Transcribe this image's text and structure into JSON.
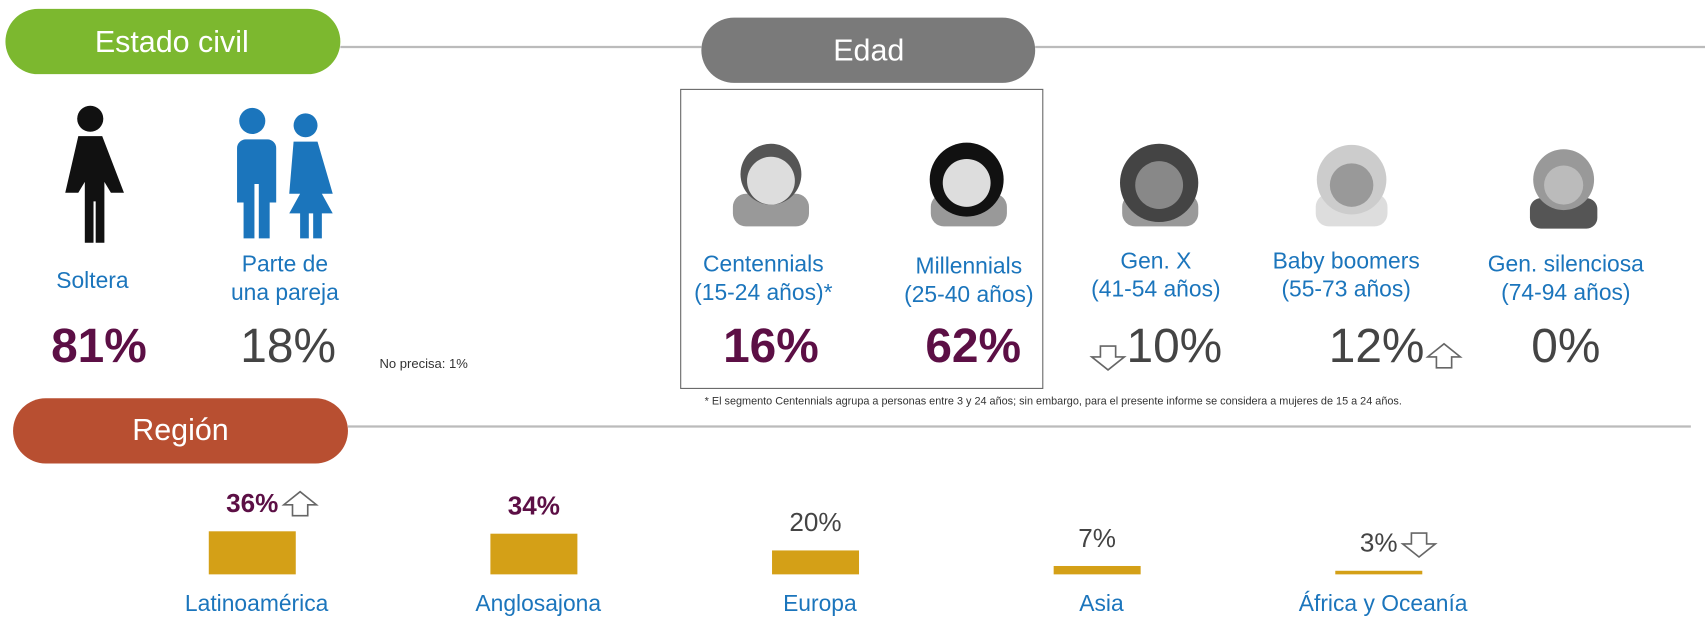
{
  "estado_civil": {
    "title": "Estado civil",
    "items": [
      {
        "lines": [
          "Soltera"
        ],
        "value": "81%",
        "highlight": true
      },
      {
        "lines": [
          "Parte de",
          "una pareja"
        ],
        "value": "18%",
        "highlight": false
      }
    ],
    "note": "No precisa: 1%"
  },
  "edad": {
    "title": "Edad",
    "items": [
      {
        "lines": [
          "Centennials",
          "(15-24 años)*"
        ],
        "value": "16%",
        "highlight": true
      },
      {
        "lines": [
          "Millennials",
          "(25-40 años)"
        ],
        "value": "62%",
        "highlight": true
      },
      {
        "lines": [
          "Gen. X",
          "(41-54 años)"
        ],
        "value": "10%",
        "highlight": false
      },
      {
        "lines": [
          "Baby boomers",
          "(55-73 años)"
        ],
        "value": "12%",
        "highlight": false
      },
      {
        "lines": [
          "Gen. silenciosa",
          "(74-94 años)"
        ],
        "value": "0%",
        "highlight": false
      }
    ],
    "footnote": "* El segmento Centennials agrupa a personas entre 3 y 24 años; sin embargo, para el presente informe se considera a mujeres de 15 a 24 años."
  },
  "region": {
    "title": "Región",
    "color": "#d4a017",
    "items": [
      {
        "label": "Latinoamérica",
        "value": 36,
        "value_label": "36%",
        "highlight": true
      },
      {
        "label": "Anglosajona",
        "value": 34,
        "value_label": "34%",
        "highlight": true
      },
      {
        "label": "Europa",
        "value": 20,
        "value_label": "20%",
        "highlight": false
      },
      {
        "label": "Asia",
        "value": 7,
        "value_label": "7%",
        "highlight": false
      },
      {
        "label": "África y Oceanía",
        "value": 3,
        "value_label": "3%",
        "highlight": false
      }
    ]
  }
}
